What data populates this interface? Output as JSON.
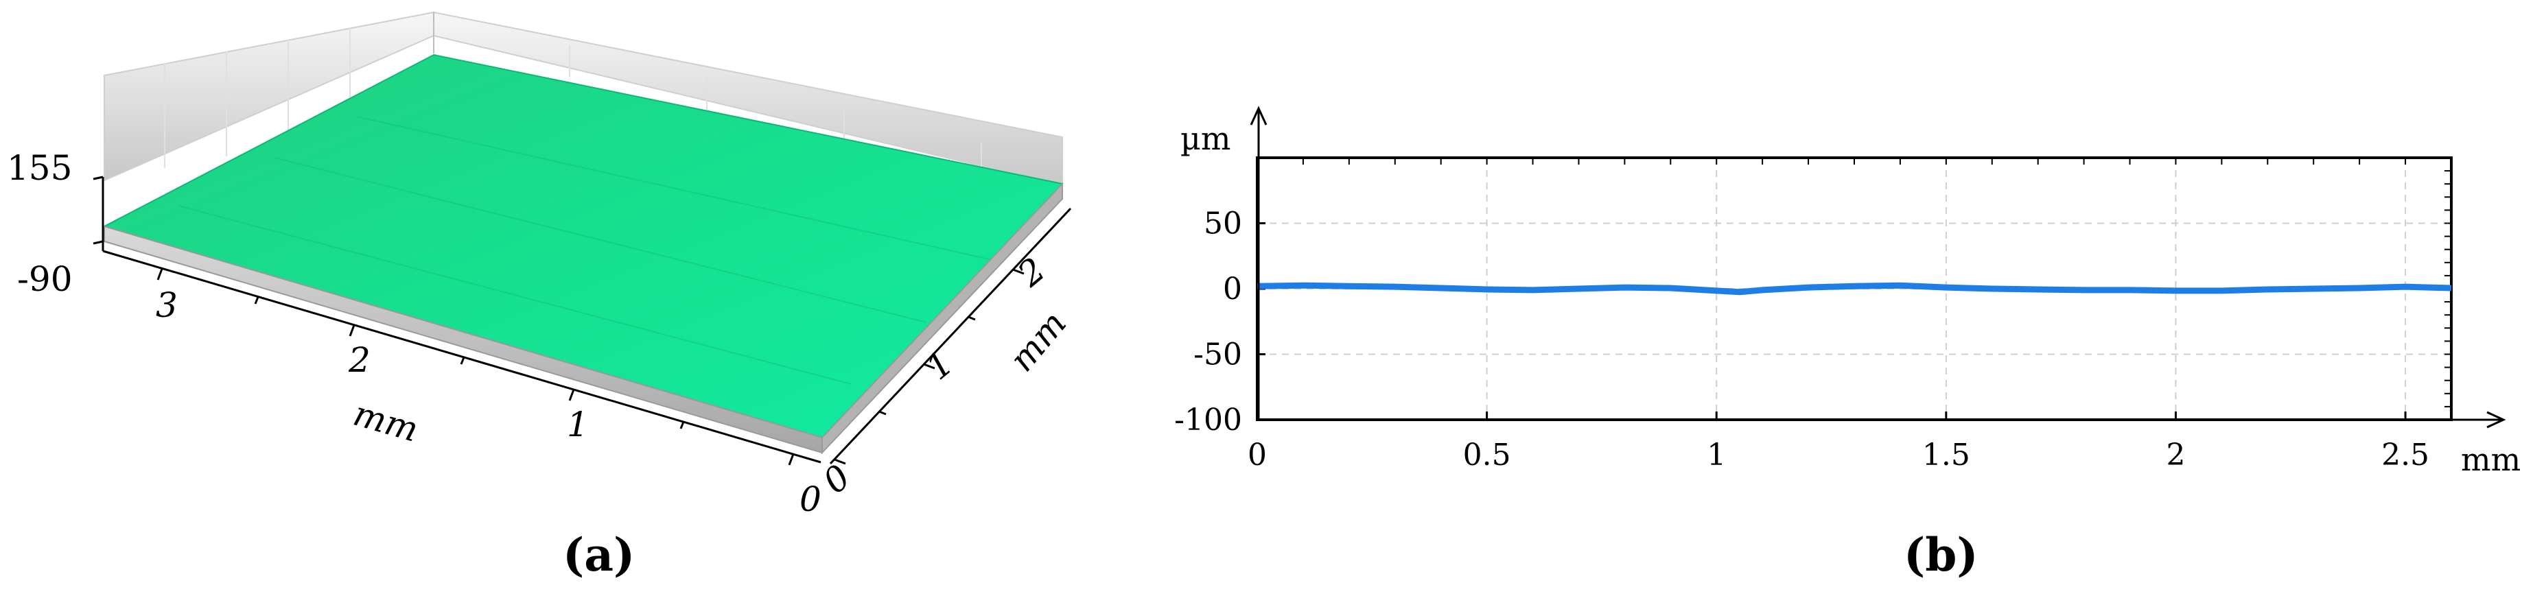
{
  "panels": {
    "a": {
      "label": "(a)",
      "z_top": "155",
      "z_bottom": "-90",
      "x_ticks": [
        "3",
        "2",
        "1",
        "0"
      ],
      "x_unit": "mm",
      "y_ticks": [
        "0",
        "1",
        "2"
      ],
      "y_unit": "mm",
      "surface_color": "#1fdc8a"
    },
    "b": {
      "label": "(b)",
      "y_unit": "µm",
      "x_unit": "mm"
    }
  },
  "chart_data": [
    {
      "type": "area",
      "panel": "a",
      "title": "",
      "z_range": [
        -90,
        155
      ],
      "x_ticks": [
        3,
        2,
        1,
        0
      ],
      "y_ticks": [
        0,
        1,
        2
      ],
      "xlabel": "mm",
      "ylabel": "mm",
      "surface": "flat"
    },
    {
      "type": "line",
      "panel": "b",
      "title": "",
      "xlabel": "mm",
      "ylabel": "µm",
      "xlim": [
        0,
        2.6
      ],
      "ylim": [
        -100,
        100
      ],
      "x_ticks": [
        0,
        0.5,
        1,
        1.5,
        2,
        2.5
      ],
      "x_tick_labels": [
        "0",
        "0.5",
        "1",
        "1.5",
        "2",
        "2.5"
      ],
      "y_ticks": [
        50,
        0,
        -50,
        -100
      ],
      "y_tick_labels": [
        "50",
        "0",
        "-50",
        "-100"
      ],
      "grid": true,
      "series": [
        {
          "color": "#1f7ee6",
          "x": [
            0,
            0.1,
            0.2,
            0.3,
            0.4,
            0.5,
            0.6,
            0.7,
            0.8,
            0.9,
            1.0,
            1.05,
            1.1,
            1.2,
            1.3,
            1.4,
            1.5,
            1.6,
            1.7,
            1.8,
            1.9,
            2.0,
            2.1,
            2.2,
            2.3,
            2.4,
            2.5,
            2.6
          ],
          "y": [
            2,
            2.5,
            2,
            1.5,
            0.5,
            -0.5,
            -1,
            0,
            1,
            0.5,
            -1.5,
            -2.5,
            -1,
            1,
            2,
            2.5,
            1,
            0,
            -0.5,
            -1,
            -1,
            -1.5,
            -1.5,
            -0.5,
            0,
            0.5,
            1.5,
            0.5
          ]
        }
      ]
    }
  ]
}
